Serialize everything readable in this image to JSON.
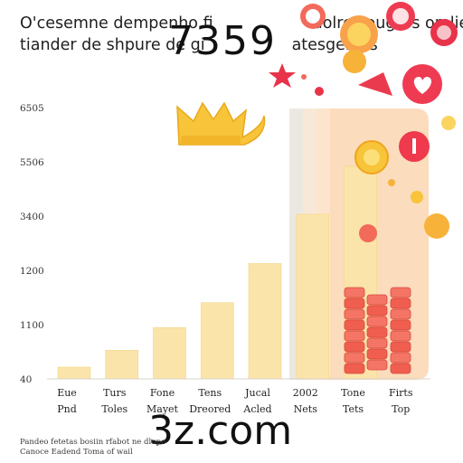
{
  "title": {
    "line1": "O'cesemne dempenho fi",
    "line1_tail": "dolres ougors omliet,",
    "line2": "tiander de shpure de gi",
    "line2_tail": "atesgenios"
  },
  "watermarks": {
    "top": "7359",
    "bottom": "3z.com"
  },
  "footnote": {
    "line1": "Pandeo fetetas bosiin rfabot ne dlupo",
    "line2": "Canoce Eadend Toma of wail"
  },
  "chart_data": {
    "type": "bar",
    "ylim": [
      40,
      6505
    ],
    "y_ticks": [
      "40",
      "1100",
      "1200",
      "3400",
      "5506",
      "6505"
    ],
    "categories": [
      [
        "Eue",
        "Pnd"
      ],
      [
        "Turs",
        "Toles"
      ],
      [
        "Fone",
        "Mayet"
      ],
      [
        "Tens",
        "Dreored"
      ],
      [
        "Jucal",
        "Acled"
      ],
      [
        "2002",
        "Nets"
      ],
      [
        "Tone",
        "Tets"
      ],
      [
        "Firts",
        "Top"
      ]
    ],
    "values": [
      320,
      720,
      1260,
      1850,
      2780,
      3950,
      5100,
      0
    ],
    "colors": {
      "bar": "#fbe4aa",
      "bar_edge": "#f3d68a",
      "highlight_panel": "#fbd7b4",
      "highlight_gray": "#e9e6de",
      "coin_stack": "#f06b5b",
      "crown": "#f7c43a"
    },
    "decorations": [
      "crown-icon",
      "coin-stack-icon",
      "heart-icon",
      "gift-icon",
      "dollar-coin-icon",
      "star-icon",
      "diamond-icon"
    ],
    "grid": false,
    "legend": "none"
  }
}
